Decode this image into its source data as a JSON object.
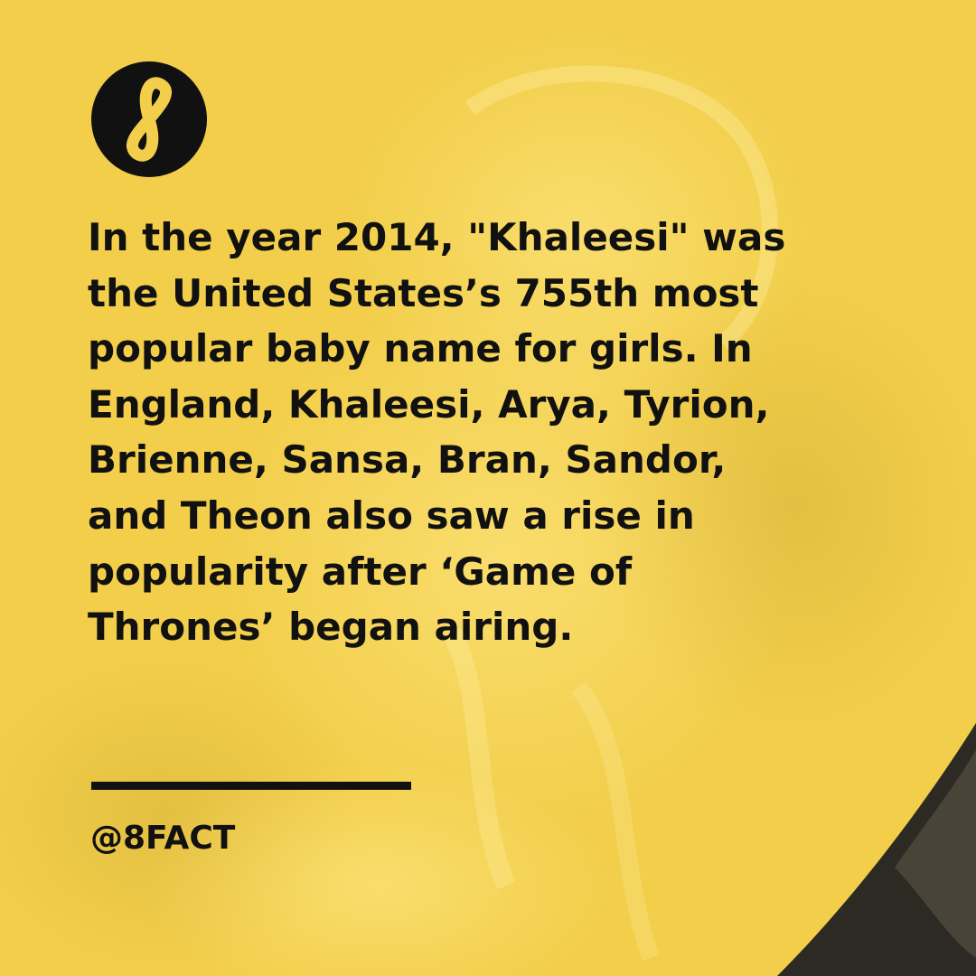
{
  "brand": {
    "logo_icon": "infinity-eight-icon",
    "handle": "@8FACT"
  },
  "post": {
    "lines": [
      "In the year 2014, \"Khaleesi\" was",
      "the United States’s 755th most",
      "popular baby name for girls. In",
      "England, Khaleesi, Arya, Tyrion,",
      "Brienne, Sansa, Bran, Sandor,",
      "and Theon also saw a rise in",
      "popularity after ‘Game of",
      "Thrones’ began airing."
    ]
  },
  "colors": {
    "background": "#f2ce4a",
    "text": "#111111",
    "logo_circle": "#111111",
    "logo_glyph": "#f2ce4a",
    "photo_corner": "#2c2a22"
  }
}
